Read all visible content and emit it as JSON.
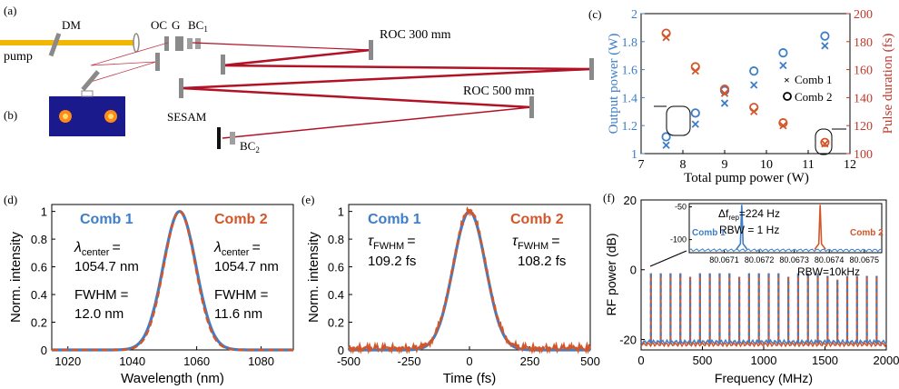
{
  "panel_labels": {
    "a": "(a)",
    "b": "(b)",
    "c": "(c)",
    "d": "(d)",
    "e": "(e)",
    "f": "(f)"
  },
  "setup": {
    "dm": "DM",
    "oc": "OC",
    "g": "G",
    "bc1": "BC",
    "bc1_sub": "1",
    "pump": "pump",
    "roc300": "ROC 300 mm",
    "roc500": "ROC 500 mm",
    "sesam": "SESAM",
    "bc2": "BC",
    "bc2_sub": "2",
    "colors": {
      "pump_beam": "#f2b705",
      "cavity": "#b11226",
      "optic": "#8a8a8a",
      "camera_bg": "#1a1a8c"
    }
  },
  "chart_data": [
    {
      "id": "c",
      "type": "scatter",
      "xlabel": "Total pump power (W)",
      "ylabel_left": "Output power (W)",
      "ylabel_right": "Pulse duration (fs)",
      "xlim": [
        7,
        12
      ],
      "ylim_left": [
        1,
        2
      ],
      "ylim_right": [
        100,
        200
      ],
      "xticks": [
        "7",
        "8",
        "9",
        "10",
        "11",
        "12"
      ],
      "yticks_left": [
        "1",
        "1.2",
        "1.4",
        "1.6",
        "1.8",
        "2"
      ],
      "yticks_right": [
        "100",
        "120",
        "140",
        "160",
        "180",
        "200"
      ],
      "x": [
        7.6,
        8.3,
        9.0,
        9.7,
        10.4,
        11.4
      ],
      "series": [
        {
          "name": "Comb 1",
          "marker": "x",
          "axis": "left",
          "values": [
            1.06,
            1.21,
            1.36,
            1.49,
            1.63,
            1.77
          ],
          "color": "#3d7ec9"
        },
        {
          "name": "Comb 2",
          "marker": "o",
          "axis": "left",
          "values": [
            1.12,
            1.29,
            1.45,
            1.59,
            1.72,
            1.84
          ],
          "color": "#3d7ec9"
        },
        {
          "name": "Comb 1",
          "marker": "x",
          "axis": "right",
          "values": [
            183,
            159,
            143,
            130,
            120,
            107
          ],
          "color": "#d2562a"
        },
        {
          "name": "Comb 2",
          "marker": "o",
          "axis": "right",
          "values": [
            186,
            162,
            146,
            133,
            122,
            108
          ],
          "color": "#d2562a"
        }
      ],
      "legend": [
        {
          "label": "Comb 1",
          "marker": "x"
        },
        {
          "label": "Comb 2",
          "marker": "o"
        }
      ],
      "legend_position": "right",
      "axis_colors": {
        "left": "#3d7ec9",
        "right": "#c0392b"
      }
    },
    {
      "id": "d",
      "type": "line",
      "xlabel": "Wavelength (nm)",
      "ylabel": "Norm. intensity",
      "xlim": [
        1015,
        1090
      ],
      "ylim": [
        0,
        1.05
      ],
      "xticks": [
        "1020",
        "1040",
        "1060",
        "1080"
      ],
      "yticks": [
        "0",
        "0.2",
        "0.4",
        "0.6",
        "0.8",
        "1"
      ],
      "series": [
        {
          "name": "Comb 1",
          "center": 1054.7,
          "fwhm": 12.0,
          "color": "#3d7ec9",
          "style": "solid"
        },
        {
          "name": "Comb 2",
          "center": 1054.7,
          "fwhm": 11.6,
          "color": "#d2562a",
          "style": "dashed"
        }
      ],
      "annotations": {
        "comb1": {
          "title": "Comb 1",
          "center_label": "λ",
          "center_sub": "center",
          "eq": "=",
          "center_value": "1054.7 nm",
          "fwhm_label": "FWHM",
          "fwhm_eq": "=",
          "fwhm_value": "12.0 nm"
        },
        "comb2": {
          "title": "Comb 2",
          "center_label": "λ",
          "center_sub": "center",
          "eq": "=",
          "center_value": "1054.7 nm",
          "fwhm_label": "FWHM",
          "fwhm_eq": "=",
          "fwhm_value": "11.6 nm"
        }
      }
    },
    {
      "id": "e",
      "type": "line",
      "xlabel": "Time (fs)",
      "ylabel": "Norm. intensity",
      "xlim": [
        -500,
        500
      ],
      "ylim": [
        0,
        1.05
      ],
      "xticks": [
        "-500",
        "-250",
        "0",
        "250",
        "500"
      ],
      "yticks": [
        "0",
        "0.2",
        "0.4",
        "0.6",
        "0.8",
        "1"
      ],
      "series": [
        {
          "name": "Comb 1",
          "fwhm": 109.2,
          "color": "#3d7ec9",
          "style": "solid"
        },
        {
          "name": "Comb 2",
          "fwhm": 108.2,
          "color": "#d2562a",
          "style": "dashed"
        }
      ],
      "annotations": {
        "comb1": {
          "title": "Comb 1",
          "label": "τ",
          "sub": "FWHM",
          "eq": "=",
          "value": "109.2 fs"
        },
        "comb2": {
          "title": "Comb 2",
          "label": "τ",
          "sub": "FWHM",
          "eq": "=",
          "value": "108.2 fs"
        }
      }
    },
    {
      "id": "f",
      "type": "line",
      "xlabel": "Frequency (MHz)",
      "ylabel": "RF power (dB)",
      "xlim": [
        0,
        2000
      ],
      "ylim": [
        -23,
        20
      ],
      "xticks": [
        "0",
        "500",
        "1000",
        "1500",
        "2000"
      ],
      "yticks": [
        "-20",
        "0",
        "20"
      ],
      "frep_mhz": 80.0674,
      "comb_count": 24,
      "peak_db": -1,
      "floor_db": -21,
      "rbw_label": "RBW=10kHz",
      "series": [
        {
          "name": "Comb 1",
          "color": "#3d7ec9"
        },
        {
          "name": "Comb 2",
          "color": "#d2562a"
        }
      ],
      "inset": {
        "type": "line",
        "xlim": [
          80.067,
          80.06755
        ],
        "ylim": [
          -120,
          -45
        ],
        "xticks": [
          "80.0671",
          "80.0672",
          "80.0673",
          "80.0674",
          "80.0675"
        ],
        "yticks": [
          "-50",
          "-100"
        ],
        "peaks": [
          {
            "name": "Comb 1",
            "x": 80.06715,
            "color": "#3d7ec9"
          },
          {
            "name": "Comb 2",
            "x": 80.067374,
            "color": "#d2562a"
          }
        ],
        "delta_label": "Δf",
        "delta_sub": "rep",
        "delta_value": "=224 Hz",
        "rbw_label": "RBW = 1 Hz",
        "comb1_label": "Comb 1",
        "comb2_label": "Comb 2"
      }
    }
  ]
}
